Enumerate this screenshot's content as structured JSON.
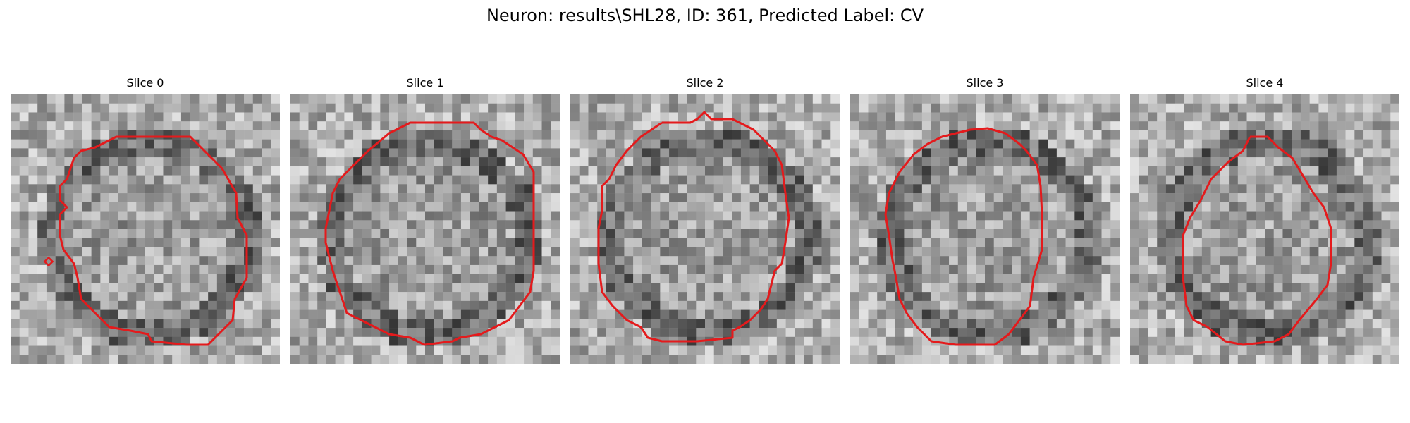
{
  "figure": {
    "title": "Neuron: results\\SHL28, ID: 361, Predicted Label: CV"
  },
  "panels": [
    {
      "title": "Slice 0",
      "seed": 11,
      "outline_color": "#e41a1c"
    },
    {
      "title": "Slice 1",
      "seed": 23,
      "outline_color": "#e41a1c"
    },
    {
      "title": "Slice 2",
      "seed": 37,
      "outline_color": "#e41a1c"
    },
    {
      "title": "Slice 3",
      "seed": 51,
      "outline_color": "#e41a1c"
    },
    {
      "title": "Slice 4",
      "seed": 73,
      "outline_color": "#e41a1c"
    }
  ]
}
